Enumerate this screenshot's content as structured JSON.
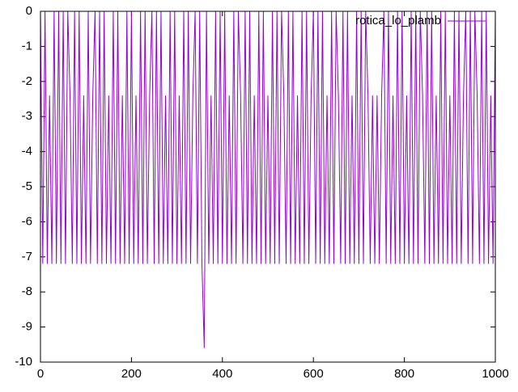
{
  "chart_data": {
    "type": "line",
    "x": [
      0,
      5,
      10,
      15,
      20,
      25,
      30,
      35,
      40,
      45,
      50,
      55,
      60,
      65,
      70,
      75,
      80,
      85,
      90,
      95,
      100,
      105,
      110,
      115,
      120,
      125,
      130,
      135,
      140,
      145,
      150,
      155,
      160,
      165,
      170,
      175,
      180,
      185,
      190,
      195,
      200,
      205,
      210,
      215,
      220,
      225,
      230,
      235,
      240,
      245,
      250,
      255,
      260,
      265,
      270,
      275,
      280,
      285,
      290,
      295,
      300,
      305,
      310,
      315,
      320,
      325,
      330,
      335,
      340,
      345,
      350,
      355,
      360,
      365,
      370,
      375,
      380,
      385,
      390,
      395,
      400,
      405,
      410,
      415,
      420,
      425,
      430,
      435,
      440,
      445,
      450,
      455,
      460,
      465,
      470,
      475,
      480,
      485,
      490,
      495,
      500,
      505,
      510,
      515,
      520,
      525,
      530,
      535,
      540,
      545,
      550,
      555,
      560,
      565,
      570,
      575,
      580,
      585,
      590,
      595,
      600,
      605,
      610,
      615,
      620,
      625,
      630,
      635,
      640,
      645,
      650,
      655,
      660,
      665,
      670,
      675,
      680,
      685,
      690,
      695,
      700,
      705,
      710,
      715,
      720,
      725,
      730,
      735,
      740,
      745,
      750,
      755,
      760,
      765,
      770,
      775,
      780,
      785,
      790,
      795,
      800,
      805,
      810,
      815,
      820,
      825,
      830,
      835,
      840,
      845,
      850,
      855,
      860,
      865,
      870,
      875,
      880,
      885,
      890,
      895,
      900,
      905,
      910,
      915,
      920,
      925,
      930,
      935,
      940,
      945,
      950,
      955,
      960,
      965,
      970,
      975,
      980,
      985,
      990,
      995,
      1000
    ],
    "series": [
      {
        "name": "rotica_lo_plamb",
        "color": "#9400d3",
        "values": [
          0,
          -7.2,
          0,
          -7.2,
          -2.4,
          -7.2,
          0,
          -7.2,
          0,
          -7.2,
          0,
          -7.2,
          0,
          -2.4,
          -7.2,
          0,
          -7.2,
          0,
          -7.2,
          -2.4,
          -7.2,
          0,
          -7.2,
          -2.4,
          0,
          -7.2,
          0,
          -7.2,
          0,
          -7.2,
          -2.4,
          -7.2,
          0,
          -7.2,
          0,
          -7.2,
          -2.4,
          -7.2,
          0,
          -7.2,
          0,
          -7.2,
          -2.4,
          -7.2,
          0,
          -7.2,
          0,
          -7.2,
          -2.4,
          0,
          -7.2,
          0,
          -7.2,
          0,
          -7.2,
          -2.4,
          -7.2,
          0,
          -7.2,
          0,
          -7.2,
          -2.4,
          -7.2,
          0,
          -7.2,
          0,
          -7.2,
          -2.4,
          0,
          -7.2,
          0,
          -7.2,
          -9.6,
          0,
          -7.2,
          -2.4,
          -7.2,
          0,
          -7.2,
          0,
          -7.2,
          0,
          -7.2,
          -2.4,
          -7.2,
          0,
          -7.2,
          0,
          -2.4,
          -7.2,
          0,
          -7.2,
          0,
          -7.2,
          -2.4,
          -7.2,
          0,
          -7.2,
          0,
          -7.2,
          -2.4,
          -7.2,
          0,
          -7.2,
          0,
          -7.2,
          0,
          -2.4,
          -7.2,
          0,
          -7.2,
          0,
          -7.2,
          -2.4,
          -7.2,
          0,
          -7.2,
          0,
          -7.2,
          -2.4,
          0,
          -7.2,
          0,
          -7.2,
          0,
          -7.2,
          -2.4,
          -7.2,
          0,
          -7.2,
          0,
          -2.4,
          -7.2,
          0,
          -7.2,
          0,
          -7.2,
          -2.4,
          -7.2,
          0,
          -7.2,
          0,
          -7.2,
          0,
          -2.4,
          -7.2,
          -2.4,
          -7.2,
          -2.4,
          -7.2,
          -2.4,
          0,
          -7.2,
          0,
          -7.2,
          -2.4,
          -7.2,
          0,
          -7.2,
          0,
          -7.2,
          -2.4,
          -7.2,
          0,
          -7.2,
          0,
          -7.2,
          0,
          -2.4,
          -7.2,
          0,
          -7.2,
          0,
          -7.2,
          -2.4,
          -7.2,
          0,
          -7.2,
          0,
          -7.2,
          -2.4,
          -7.2,
          0,
          -7.2,
          0,
          -7.2,
          -2.4,
          0,
          -7.2,
          0,
          -7.2,
          0,
          -2.4,
          -7.2,
          0,
          -7.2,
          0,
          -7.2,
          -2.4,
          -7.2,
          0
        ]
      }
    ],
    "xlim": [
      0,
      1000
    ],
    "xticks": [
      0,
      200,
      400,
      600,
      800,
      1000
    ],
    "ylim": [
      -10,
      0
    ],
    "yticks": [
      0,
      -1,
      -2,
      -3,
      -4,
      -5,
      -6,
      -7,
      -8,
      -9,
      -10
    ]
  }
}
